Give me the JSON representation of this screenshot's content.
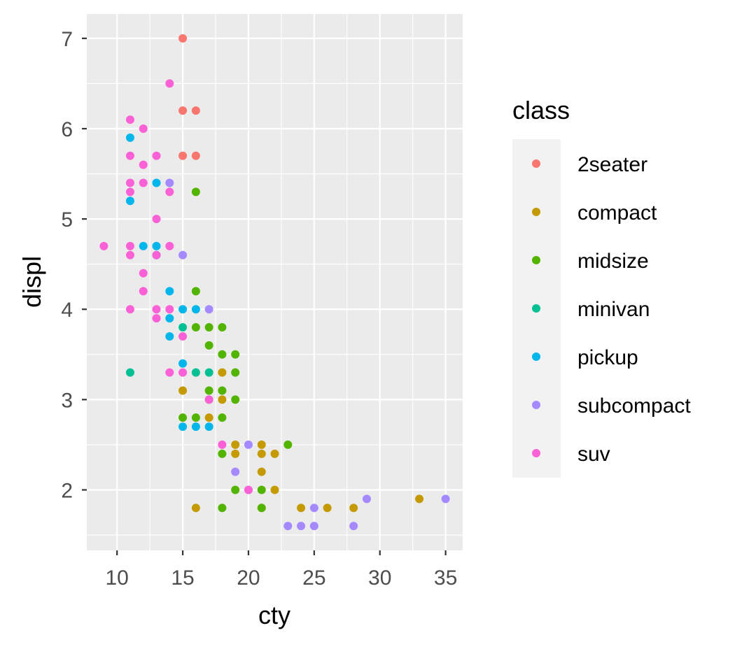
{
  "chart_data": {
    "type": "scatter",
    "xlabel": "cty",
    "ylabel": "displ",
    "xlim": [
      7.7,
      36.3
    ],
    "ylim": [
      1.33,
      7.27
    ],
    "x_ticks": [
      10,
      15,
      20,
      25,
      30,
      35
    ],
    "y_ticks": [
      2,
      3,
      4,
      5,
      6,
      7
    ],
    "x_minor": [
      7.5,
      12.5,
      17.5,
      22.5,
      27.5,
      32.5
    ],
    "y_minor": [
      1.5,
      2.5,
      3.5,
      4.5,
      5.5,
      6.5
    ],
    "grid": true,
    "legend": {
      "title": "class",
      "position": "right",
      "entries": [
        "2seater",
        "compact",
        "midsize",
        "minivan",
        "pickup",
        "subcompact",
        "suv"
      ]
    },
    "series": [
      {
        "name": "2seater",
        "color": "#F8766D",
        "points": [
          [
            15,
            7.0
          ],
          [
            15,
            6.2
          ],
          [
            16,
            6.2
          ],
          [
            15,
            5.7
          ],
          [
            16,
            5.7
          ]
        ]
      },
      {
        "name": "compact",
        "color": "#C49A00",
        "points": [
          [
            18,
            3.3
          ],
          [
            15,
            3.1
          ],
          [
            17,
            2.8
          ],
          [
            18,
            3.0
          ],
          [
            16,
            1.8
          ],
          [
            19,
            2.5
          ],
          [
            21,
            2.5
          ],
          [
            19,
            2.4
          ],
          [
            21,
            2.4
          ],
          [
            22,
            2.4
          ],
          [
            21,
            2.2
          ],
          [
            22,
            2.0
          ],
          [
            24,
            1.8
          ],
          [
            26,
            1.8
          ],
          [
            28,
            1.8
          ],
          [
            33,
            1.9
          ],
          [
            21,
            1.8
          ]
        ]
      },
      {
        "name": "midsize",
        "color": "#53B400",
        "points": [
          [
            16,
            5.3
          ],
          [
            16,
            4.2
          ],
          [
            16,
            3.8
          ],
          [
            17,
            3.8
          ],
          [
            18,
            3.8
          ],
          [
            17,
            3.6
          ],
          [
            18,
            3.5
          ],
          [
            19,
            3.5
          ],
          [
            19,
            3.3
          ],
          [
            17,
            3.1
          ],
          [
            18,
            3.1
          ],
          [
            17,
            3.0
          ],
          [
            19,
            3.0
          ],
          [
            15,
            2.8
          ],
          [
            16,
            2.8
          ],
          [
            18,
            2.8
          ],
          [
            18,
            2.4
          ],
          [
            23,
            2.5
          ],
          [
            19,
            2.0
          ],
          [
            21,
            2.0
          ],
          [
            18,
            1.8
          ],
          [
            21,
            1.8
          ]
        ]
      },
      {
        "name": "minivan",
        "color": "#00C094",
        "points": [
          [
            11,
            3.3
          ],
          [
            15,
            3.8
          ],
          [
            16,
            3.3
          ],
          [
            17,
            3.3
          ]
        ]
      },
      {
        "name": "pickup",
        "color": "#00B6EB",
        "points": [
          [
            11,
            5.9
          ],
          [
            13,
            5.4
          ],
          [
            11,
            5.2
          ],
          [
            12,
            4.7
          ],
          [
            13,
            4.7
          ],
          [
            13,
            4.6
          ],
          [
            14,
            4.2
          ],
          [
            14,
            3.9
          ],
          [
            15,
            4.0
          ],
          [
            16,
            4.0
          ],
          [
            14,
            3.7
          ],
          [
            15,
            3.4
          ],
          [
            15,
            2.7
          ],
          [
            16,
            2.7
          ],
          [
            17,
            2.7
          ]
        ]
      },
      {
        "name": "subcompact",
        "color": "#A58AFF",
        "points": [
          [
            14,
            5.4
          ],
          [
            15,
            4.6
          ],
          [
            17,
            4.0
          ],
          [
            20,
            2.5
          ],
          [
            19,
            2.2
          ],
          [
            20,
            2.0
          ],
          [
            23,
            1.6
          ],
          [
            24,
            1.6
          ],
          [
            25,
            1.6
          ],
          [
            28,
            1.6
          ],
          [
            25,
            1.8
          ],
          [
            29,
            1.9
          ],
          [
            35,
            1.9
          ]
        ]
      },
      {
        "name": "suv",
        "color": "#FB61D7",
        "points": [
          [
            9,
            4.7
          ],
          [
            11,
            6.1
          ],
          [
            12,
            6.0
          ],
          [
            14,
            6.5
          ],
          [
            11,
            5.7
          ],
          [
            13,
            5.7
          ],
          [
            12,
            5.6
          ],
          [
            11,
            5.4
          ],
          [
            12,
            5.4
          ],
          [
            11,
            5.3
          ],
          [
            14,
            5.3
          ],
          [
            13,
            5.0
          ],
          [
            11,
            4.7
          ],
          [
            14,
            4.7
          ],
          [
            11,
            4.6
          ],
          [
            13,
            4.6
          ],
          [
            12,
            4.4
          ],
          [
            12,
            4.2
          ],
          [
            11,
            4.0
          ],
          [
            13,
            4.0
          ],
          [
            14,
            4.0
          ],
          [
            13,
            3.9
          ],
          [
            15,
            3.7
          ],
          [
            14,
            3.3
          ],
          [
            15,
            3.3
          ],
          [
            17,
            3.0
          ],
          [
            18,
            2.5
          ],
          [
            20,
            2.0
          ]
        ]
      }
    ]
  }
}
